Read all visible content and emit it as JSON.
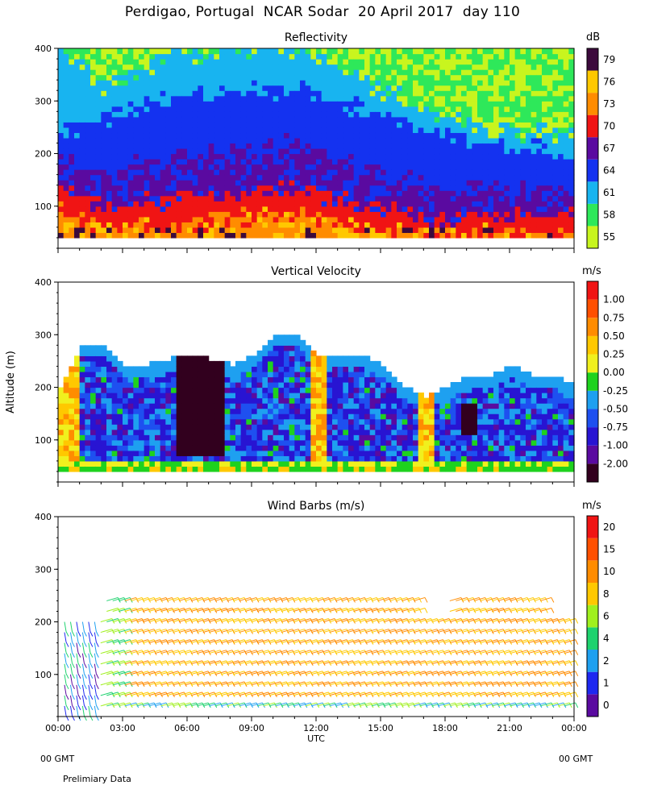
{
  "page": {
    "title": "Perdigao, Portugal  NCAR Sodar  20 April 2017  day 110",
    "left_footer": "00 GMT",
    "right_footer": "00 GMT",
    "note": "Prelimiary Data",
    "xlabel": "UTC",
    "ylabel": "Altitude (m)"
  },
  "chart_data": [
    {
      "type": "heatmap",
      "title": "Reflectivity",
      "unit": "dB",
      "x_ticks": [
        "00:00",
        "03:00",
        "06:00",
        "09:00",
        "12:00",
        "15:00",
        "18:00",
        "21:00",
        "00:00"
      ],
      "xlim": [
        0,
        24
      ],
      "ylim": [
        20,
        400
      ],
      "y_ticks": [
        100,
        200,
        300,
        400
      ],
      "data_alt_range": [
        40,
        400
      ],
      "colorbar": {
        "labels": [
          "55",
          "58",
          "61",
          "64",
          "67",
          "70",
          "73",
          "76",
          "79"
        ],
        "colors": [
          "#c8f51e",
          "#2ee85a",
          "#18b4f0",
          "#1432f0",
          "#5a0aa0",
          "#f01414",
          "#ff8c00",
          "#ffc800",
          "#3c0a3c"
        ]
      },
      "profile_top_of_high_dB_m": [
        {
          "t": 0,
          "layers": [
            90,
            130,
            180,
            230,
            400
          ]
        },
        {
          "t": 2,
          "layers": [
            50,
            90,
            160,
            260,
            320
          ]
        },
        {
          "t": 5,
          "layers": [
            60,
            110,
            190,
            300,
            380
          ]
        },
        {
          "t": 8,
          "layers": [
            70,
            120,
            200,
            310,
            390
          ]
        },
        {
          "t": 11,
          "layers": [
            80,
            130,
            220,
            320,
            390
          ]
        },
        {
          "t": 14,
          "layers": [
            60,
            100,
            170,
            280,
            350
          ]
        },
        {
          "t": 17,
          "layers": [
            45,
            70,
            140,
            240,
            300
          ]
        },
        {
          "t": 20,
          "layers": [
            45,
            80,
            130,
            210,
            260
          ]
        },
        {
          "t": 24,
          "layers": [
            45,
            80,
            120,
            200,
            250
          ]
        }
      ]
    },
    {
      "type": "heatmap",
      "title": "Vertical Velocity",
      "unit": "m/s",
      "x_ticks": [
        "00:00",
        "03:00",
        "06:00",
        "09:00",
        "12:00",
        "15:00",
        "18:00",
        "21:00",
        "00:00"
      ],
      "xlim": [
        0,
        24
      ],
      "ylim": [
        20,
        400
      ],
      "y_ticks": [
        100,
        200,
        300,
        400
      ],
      "data_alt_range": [
        40,
        300
      ],
      "colorbar": {
        "labels": [
          "-2.00",
          "-1.00",
          "-0.75",
          "-0.50",
          "-0.25",
          "0.00",
          "0.25",
          "0.50",
          "0.75",
          "1.00"
        ],
        "colors": [
          "#32001e",
          "#5a0aa0",
          "#2814d2",
          "#1e50f0",
          "#1ea0f0",
          "#1ed21e",
          "#f0f01e",
          "#ffc800",
          "#ff8c00",
          "#ff5000",
          "#f01414"
        ]
      },
      "data_top_m": [
        {
          "t": 0,
          "top": 200
        },
        {
          "t": 1,
          "top": 280
        },
        {
          "t": 2,
          "top": 280
        },
        {
          "t": 3,
          "top": 240
        },
        {
          "t": 4,
          "top": 240
        },
        {
          "t": 6,
          "top": 260
        },
        {
          "t": 8,
          "top": 240
        },
        {
          "t": 9,
          "top": 260
        },
        {
          "t": 10,
          "top": 300
        },
        {
          "t": 11,
          "top": 300
        },
        {
          "t": 12,
          "top": 260
        },
        {
          "t": 13,
          "top": 260
        },
        {
          "t": 14,
          "top": 260
        },
        {
          "t": 15,
          "top": 240
        },
        {
          "t": 16,
          "top": 200
        },
        {
          "t": 17,
          "top": 180
        },
        {
          "t": 18,
          "top": 200
        },
        {
          "t": 19,
          "top": 220
        },
        {
          "t": 20,
          "top": 220
        },
        {
          "t": 21,
          "top": 240
        },
        {
          "t": 22,
          "top": 220
        },
        {
          "t": 23,
          "top": 220
        },
        {
          "t": 24,
          "top": 200
        }
      ],
      "strong_downdraft_window_hours": [
        5.5,
        7.5
      ]
    },
    {
      "type": "scatter",
      "title": "Wind Barbs (m/s)",
      "unit": "m/s",
      "x_ticks": [
        "00:00",
        "03:00",
        "06:00",
        "09:00",
        "12:00",
        "15:00",
        "18:00",
        "21:00",
        "00:00"
      ],
      "xlim": [
        0,
        24
      ],
      "ylim": [
        20,
        400
      ],
      "y_ticks": [
        100,
        200,
        300,
        400
      ],
      "colorbar": {
        "labels": [
          "0",
          "1",
          "2",
          "4",
          "6",
          "8",
          "10",
          "15",
          "20"
        ],
        "colors": [
          "#5a0aa0",
          "#1e28f0",
          "#1ea0f0",
          "#1ed26e",
          "#a0f01e",
          "#ffc800",
          "#ff8c00",
          "#ff5000",
          "#f01414"
        ]
      },
      "barb_altitudes_m": [
        40,
        60,
        80,
        100,
        120,
        140,
        160,
        180,
        200,
        220,
        240
      ],
      "dominant_speed_color_index": 6
    }
  ]
}
